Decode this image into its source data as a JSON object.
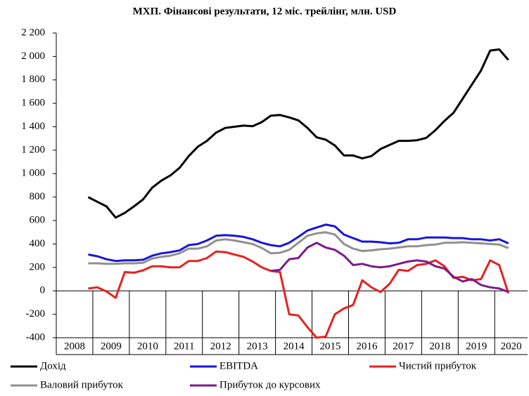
{
  "chart_data": {
    "type": "line",
    "title": "МХП. Фінансові результати, 12 міс. трейлінг, млн. USD",
    "x": [
      2008.875,
      2009.125,
      2009.375,
      2009.625,
      2009.875,
      2010.125,
      2010.375,
      2010.625,
      2010.875,
      2011.125,
      2011.375,
      2011.625,
      2011.875,
      2012.125,
      2012.375,
      2012.625,
      2012.875,
      2013.125,
      2013.375,
      2013.625,
      2013.875,
      2014.125,
      2014.375,
      2014.625,
      2014.875,
      2015.125,
      2015.375,
      2015.625,
      2015.875,
      2016.125,
      2016.375,
      2016.625,
      2016.875,
      2017.125,
      2017.375,
      2017.625,
      2017.875,
      2018.125,
      2018.375,
      2018.625,
      2018.875,
      2019.125,
      2019.375,
      2019.625,
      2019.875,
      2020.125,
      2020.375
    ],
    "series": [
      {
        "name": "Дохід",
        "color": "#000000",
        "values": [
          800,
          760,
          720,
          625,
          665,
          720,
          780,
          880,
          940,
          985,
          1050,
          1150,
          1230,
          1280,
          1350,
          1390,
          1400,
          1410,
          1405,
          1440,
          1495,
          1500,
          1480,
          1455,
          1390,
          1310,
          1290,
          1240,
          1155,
          1155,
          1130,
          1150,
          1210,
          1245,
          1280,
          1280,
          1285,
          1305,
          1370,
          1450,
          1520,
          1640,
          1760,
          1880,
          2050,
          2060,
          1970
        ]
      },
      {
        "name": "EBITDA",
        "color": "#1515e0",
        "values": [
          310,
          295,
          270,
          255,
          260,
          260,
          265,
          300,
          320,
          330,
          345,
          390,
          400,
          430,
          470,
          475,
          470,
          460,
          440,
          410,
          390,
          380,
          410,
          460,
          515,
          540,
          565,
          550,
          480,
          450,
          420,
          420,
          415,
          405,
          410,
          440,
          440,
          455,
          455,
          455,
          450,
          450,
          440,
          440,
          430,
          440,
          405
        ]
      },
      {
        "name": "Чистий прибуток",
        "color": "#e82020",
        "values": [
          20,
          30,
          -5,
          -60,
          160,
          155,
          175,
          210,
          210,
          200,
          200,
          255,
          255,
          280,
          335,
          330,
          310,
          290,
          250,
          200,
          170,
          160,
          -200,
          -210,
          -310,
          -400,
          -390,
          -200,
          -150,
          -120,
          90,
          30,
          -10,
          60,
          180,
          170,
          220,
          230,
          260,
          210,
          110,
          120,
          90,
          100,
          260,
          220,
          -20
        ]
      },
      {
        "name": "Валовий прибуток",
        "color": "#909090",
        "values": [
          235,
          235,
          230,
          230,
          235,
          235,
          240,
          275,
          290,
          300,
          320,
          360,
          360,
          380,
          430,
          440,
          430,
          415,
          400,
          365,
          320,
          325,
          350,
          410,
          470,
          490,
          500,
          480,
          400,
          360,
          340,
          345,
          355,
          360,
          370,
          380,
          380,
          390,
          395,
          410,
          410,
          415,
          410,
          405,
          400,
          395,
          365
        ]
      },
      {
        "name": "Прибуток до курсових",
        "color": "#7a1a8a",
        "values": [
          null,
          null,
          null,
          null,
          null,
          null,
          null,
          null,
          null,
          null,
          null,
          null,
          null,
          null,
          null,
          null,
          null,
          null,
          null,
          null,
          170,
          180,
          270,
          280,
          370,
          410,
          370,
          350,
          300,
          220,
          230,
          210,
          200,
          210,
          230,
          250,
          260,
          250,
          210,
          190,
          120,
          80,
          100,
          50,
          30,
          20,
          -10
        ]
      }
    ],
    "xlim": [
      2008,
      2020.9
    ],
    "xticks": [
      {
        "value": 2008,
        "label": "2008"
      },
      {
        "value": 2009,
        "label": "2009"
      },
      {
        "value": 2010,
        "label": "2010"
      },
      {
        "value": 2011,
        "label": "2011"
      },
      {
        "value": 2012,
        "label": "2012"
      },
      {
        "value": 2013,
        "label": "2013"
      },
      {
        "value": 2014,
        "label": "2014"
      },
      {
        "value": 2015,
        "label": "2015"
      },
      {
        "value": 2016,
        "label": "2016"
      },
      {
        "value": 2017,
        "label": "2017"
      },
      {
        "value": 2018,
        "label": "2018"
      },
      {
        "value": 2019,
        "label": "2019"
      },
      {
        "value": 2020,
        "label": "2020"
      }
    ],
    "ylim": [
      -400,
      2200
    ],
    "yticks": [
      {
        "value": 2200,
        "label": "2 200"
      },
      {
        "value": 2000,
        "label": "2 000"
      },
      {
        "value": 1800,
        "label": "1 800"
      },
      {
        "value": 1600,
        "label": "1 600"
      },
      {
        "value": 1400,
        "label": "1 400"
      },
      {
        "value": 1200,
        "label": "1 200"
      },
      {
        "value": 1000,
        "label": "1 000"
      },
      800,
      600,
      400,
      200,
      0,
      -200,
      -400
    ],
    "grid": false
  }
}
